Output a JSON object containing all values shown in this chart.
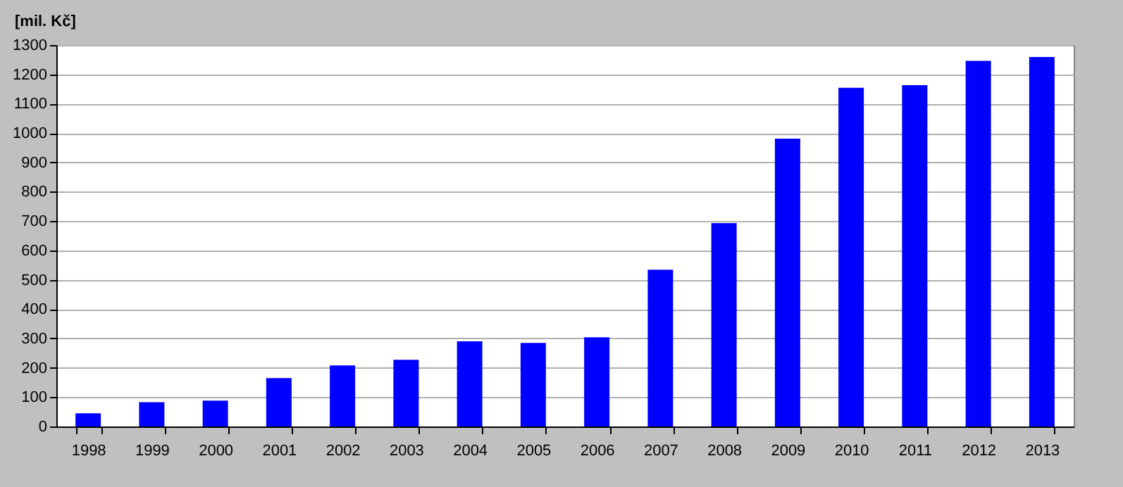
{
  "chart_data": {
    "type": "bar",
    "ylabel": "[mil. Kč]",
    "categories": [
      "1998",
      "1999",
      "2000",
      "2001",
      "2002",
      "2003",
      "2004",
      "2005",
      "2006",
      "2007",
      "2008",
      "2009",
      "2010",
      "2011",
      "2012",
      "2013"
    ],
    "values": [
      45,
      83,
      88,
      165,
      208,
      227,
      290,
      285,
      304,
      534,
      693,
      981,
      1154,
      1163,
      1246,
      1259
    ],
    "color": "#0000ff",
    "ylim": [
      0,
      1300
    ],
    "yticks": [
      0,
      100,
      200,
      300,
      400,
      500,
      600,
      700,
      800,
      900,
      1000,
      1100,
      1200,
      1300
    ],
    "grid": "y"
  }
}
